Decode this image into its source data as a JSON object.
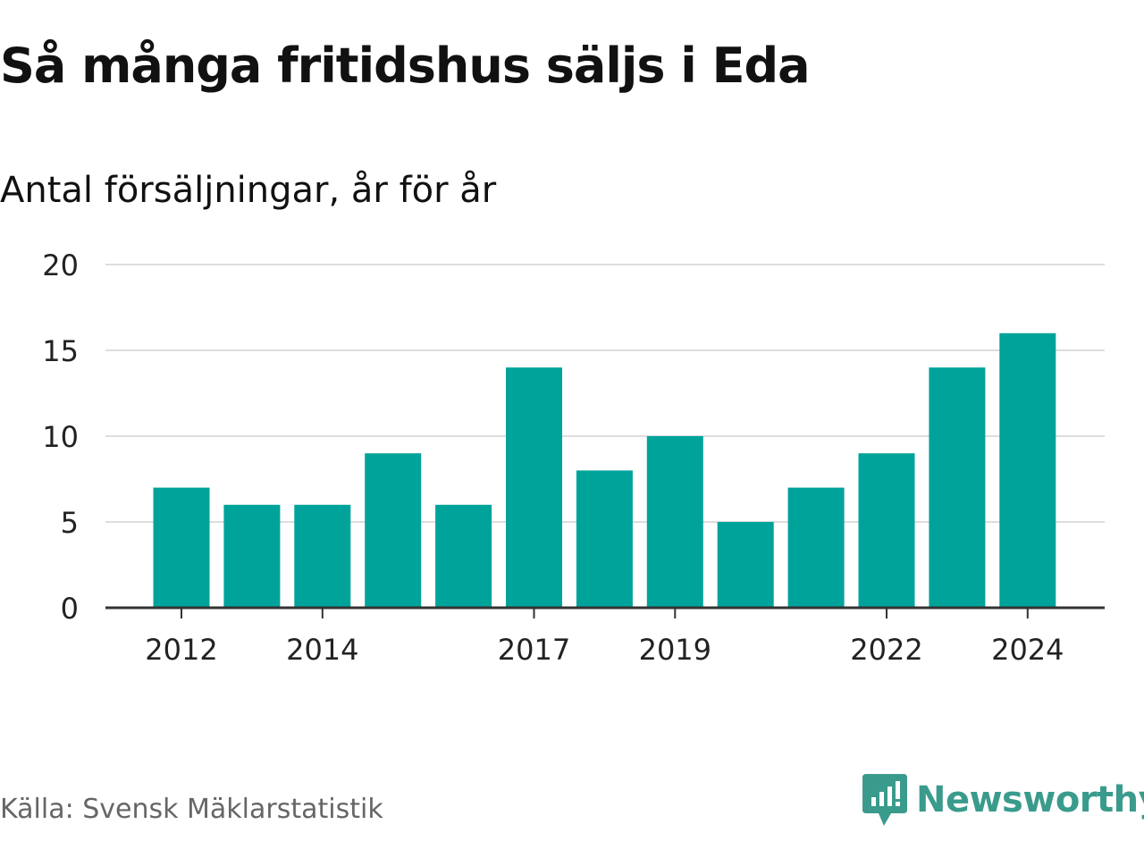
{
  "header": {
    "title": "Så många fritidshus säljs i Eda",
    "subtitle": "Antal försäljningar, år för år"
  },
  "footer": {
    "source": "Källa: Svensk Mäklarstatistik",
    "brand_name": "Newsworthy",
    "brand_icon": "newsworthy-logo-icon"
  },
  "colors": {
    "bar": "#00a39a",
    "grid": "#dddddd",
    "axis": "#333333",
    "brand": "#3a9b8c"
  },
  "chart_data": {
    "type": "bar",
    "categories": [
      "2012",
      "2013",
      "2014",
      "2015",
      "2016",
      "2017",
      "2018",
      "2019",
      "2020",
      "2021",
      "2022",
      "2023",
      "2024"
    ],
    "values": [
      7,
      6,
      6,
      9,
      6,
      14,
      8,
      10,
      5,
      7,
      9,
      14,
      16
    ],
    "x_tick_labels": [
      "2012",
      "2014",
      "2017",
      "2019",
      "2022",
      "2024"
    ],
    "y_ticks": [
      0,
      5,
      10,
      15,
      20
    ],
    "ylim": [
      0,
      20
    ],
    "grid": true,
    "title": "Så många fritidshus säljs i Eda",
    "subtitle": "Antal försäljningar, år för år",
    "xlabel": "",
    "ylabel": ""
  }
}
